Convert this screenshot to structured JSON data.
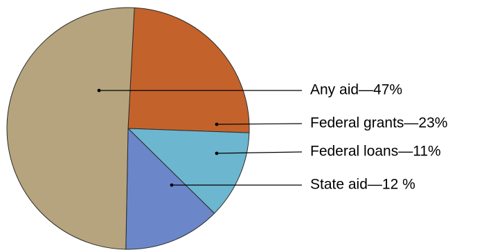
{
  "chart_data": {
    "type": "pie",
    "slices": [
      {
        "label": "Any aid—47%",
        "value": 47,
        "color": "#b5a47d"
      },
      {
        "label": "Federal grants—23%",
        "value": 23,
        "color": "#c4622b"
      },
      {
        "label": "Federal loans—11%",
        "value": 11,
        "color": "#6cb6cf"
      },
      {
        "label": "State aid—12 %",
        "value": 12,
        "color": "#6b87c9"
      }
    ],
    "legend": "right, with leader lines"
  }
}
